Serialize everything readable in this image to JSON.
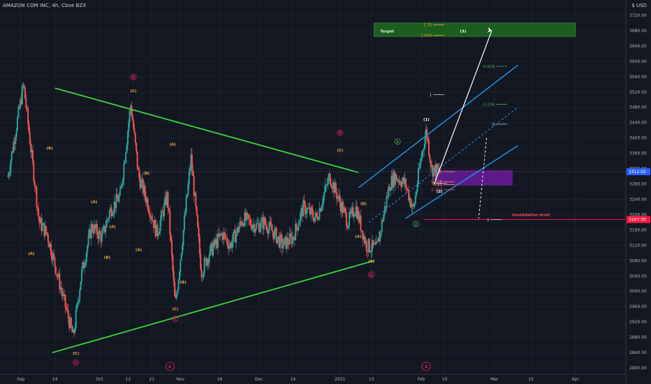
{
  "header": {
    "symbol": "AMAZON COM INC, 4h, Cboe BZX",
    "currency": "USD",
    "currency_icon": "dollar-sign-icon"
  },
  "colors": {
    "background": "#131722",
    "bull": "#26a69a",
    "bear": "#ef5350",
    "triangle": "#3dd53d",
    "channel": "#2196f3",
    "target_zone": "#1b5e20",
    "retrace_zone": "#6a1b9a",
    "invalidation": "#ff1744",
    "wave_orange": "#f2a93b",
    "wave_magenta": "#e91e63",
    "wave_green": "#4caf50"
  },
  "chart_data": {
    "type": "candlestick",
    "title": "AMAZON COM INC, 4h, Cboe BZX",
    "yaxis": {
      "range": [
        2780,
        3760
      ],
      "ticks": [
        2800,
        2840,
        2880,
        2920,
        2960,
        3000,
        3040,
        3080,
        3120,
        3160,
        3200,
        3240,
        3280,
        3320,
        3360,
        3400,
        3440,
        3480,
        3520,
        3560,
        3600,
        3640,
        3680,
        3720
      ],
      "tick_labels": [
        "2800.00",
        "2840.00",
        "2880.00",
        "2920.00",
        "2960.00",
        "3000.00",
        "3040.00",
        "3080.00",
        "3120.00",
        "3160.00",
        "3200.00",
        "3240.00",
        "3280.00",
        "3320.00",
        "3360.00",
        "3400.00",
        "3440.00",
        "3480.00",
        "3520.00",
        "3560.00",
        "3600.00",
        "3640.00",
        "3680.00",
        "3720.00"
      ],
      "last_price": "3312.02",
      "invalidation_price": "3187.30"
    },
    "xaxis": {
      "labels": [
        "Sep",
        "14",
        "Oct",
        "12",
        "21",
        "Nov",
        "16",
        "Dec",
        "14",
        "2021",
        "13",
        "Feb",
        "10",
        "Mar",
        "15",
        "Apr"
      ],
      "dates": [
        "2020-09-01",
        "2020-09-14",
        "2020-10-01",
        "2020-10-12",
        "2020-10-21",
        "2020-11-01",
        "2020-11-16",
        "2020-12-01",
        "2020-12-14",
        "2021-01-01",
        "2021-01-13",
        "2021-02-01",
        "2021-02-10",
        "2021-03-01",
        "2021-03-15",
        "2021-04-01"
      ]
    },
    "price_path": [
      [
        "2020-08-27",
        3300
      ],
      [
        "2020-09-02",
        3540
      ],
      [
        "2020-09-08",
        3180
      ],
      [
        "2020-09-11",
        3150
      ],
      [
        "2020-09-21",
        2880
      ],
      [
        "2020-09-24",
        3040
      ],
      [
        "2020-09-28",
        3170
      ],
      [
        "2020-10-02",
        3140
      ],
      [
        "2020-10-05",
        3210
      ],
      [
        "2020-10-09",
        3250
      ],
      [
        "2020-10-13",
        3490
      ],
      [
        "2020-10-16",
        3300
      ],
      [
        "2020-10-20",
        3220
      ],
      [
        "2020-10-23",
        3150
      ],
      [
        "2020-10-27",
        3250
      ],
      [
        "2020-10-30",
        2960
      ],
      [
        "2020-11-04",
        3280
      ],
      [
        "2020-11-05",
        3350
      ],
      [
        "2020-11-09",
        3050
      ],
      [
        "2020-11-12",
        3100
      ],
      [
        "2020-11-17",
        3150
      ],
      [
        "2020-11-20",
        3120
      ],
      [
        "2020-11-25",
        3190
      ],
      [
        "2020-11-30",
        3170
      ],
      [
        "2020-12-03",
        3180
      ],
      [
        "2020-12-07",
        3150
      ],
      [
        "2020-12-10",
        3120
      ],
      [
        "2020-12-14",
        3140
      ],
      [
        "2020-12-18",
        3220
      ],
      [
        "2020-12-23",
        3190
      ],
      [
        "2020-12-28",
        3300
      ],
      [
        "2021-01-04",
        3180
      ],
      [
        "2021-01-07",
        3220
      ],
      [
        "2021-01-11",
        3120
      ],
      [
        "2021-01-15",
        3110
      ],
      [
        "2021-01-20",
        3280
      ],
      [
        "2021-01-22",
        3300
      ],
      [
        "2021-01-26",
        3280
      ],
      [
        "2021-01-29",
        3210
      ],
      [
        "2021-02-01",
        3350
      ],
      [
        "2021-02-03",
        3420
      ],
      [
        "2021-02-05",
        3320
      ],
      [
        "2021-02-08",
        3312
      ]
    ],
    "triangle_upper": [
      [
        "2020-09-14",
        3530
      ],
      [
        "2021-01-08",
        3310
      ]
    ],
    "triangle_lower": [
      [
        "2020-09-13",
        2840
      ],
      [
        "2021-01-14",
        3080
      ]
    ],
    "channel_upper": [
      [
        "2021-01-08",
        3270
      ],
      [
        "2021-03-10",
        3590
      ]
    ],
    "channel_lower": [
      [
        "2021-01-26",
        3190
      ],
      [
        "2021-03-10",
        3380
      ]
    ],
    "channel_mid": [
      [
        "2021-01-12",
        3180
      ],
      [
        "2021-03-10",
        3480
      ]
    ],
    "projection": [
      [
        "2021-02-06",
        3280
      ],
      [
        "2021-02-28",
        3680
      ]
    ],
    "projection_alt": [
      [
        "2021-02-26",
        3400
      ],
      [
        "2021-02-23",
        3190
      ]
    ],
    "invalidation_line": [
      [
        "2021-02-02",
        3187.3
      ],
      [
        "2021-04-20",
        3187.3
      ]
    ],
    "target_zone": {
      "x": [
        "2021-01-14",
        "2021-04-01"
      ],
      "y": [
        3665,
        3700
      ]
    },
    "retrace_zone": {
      "x": [
        "2021-02-06",
        "2021-03-08"
      ],
      "y": [
        3276,
        3316
      ]
    },
    "fib_levels": [
      {
        "label": "1.75",
        "value": 3695,
        "x": "2021-02-04"
      },
      {
        "label": "1.618",
        "value": 3668,
        "x": "2021-02-04"
      },
      {
        "label": "-0.618",
        "value": 3587,
        "x": "2021-02-28"
      },
      {
        "label": "1",
        "value": 3513,
        "x": "2021-02-04"
      },
      {
        "label": "-0.236",
        "value": 3488,
        "x": "2021-02-28"
      },
      {
        "label": "0",
        "value": 3436,
        "x": "2021-02-28"
      },
      {
        "label": "0.5",
        "value": 3312,
        "x": "2021-02-08"
      },
      {
        "label": "0.618",
        "value": 3286,
        "x": "2021-02-08"
      },
      {
        "label": "0.65",
        "value": 3278,
        "x": "2021-02-08"
      },
      {
        "label": "0.707",
        "value": 3265,
        "x": "2021-02-08"
      },
      {
        "label": "0",
        "value": 3282,
        "x": "2021-02-05"
      },
      {
        "label": "1",
        "value": 3187.3,
        "x": "2021-02-26"
      }
    ],
    "annotations": [
      {
        "text": "Target",
        "x": "2021-01-19",
        "y": 3675,
        "style": "green"
      },
      {
        "text": "(3)",
        "x": "2021-02-17",
        "y": 3675,
        "style": "white"
      },
      {
        "text": "Invalidation level",
        "x": "2021-03-15",
        "y": 3196,
        "style": "red"
      },
      {
        "text": "(1)",
        "x": "2021-02-03",
        "y": 3445,
        "style": "white"
      },
      {
        "text": "(2)",
        "x": "2021-02-08",
        "y": 3257,
        "style": "white"
      },
      {
        "text": "(B)",
        "x": "2020-09-12",
        "y": 3370,
        "style": "orange"
      },
      {
        "text": "(A)",
        "x": "2020-09-05",
        "y": 3095,
        "style": "orange"
      },
      {
        "text": "(C)",
        "x": "2020-09-22",
        "y": 2835,
        "style": "orange"
      },
      {
        "text": "A",
        "x": "2020-09-22",
        "y": 2810,
        "style": "magenta"
      },
      {
        "text": "(A)",
        "x": "2020-09-29",
        "y": 3230,
        "style": "orange"
      },
      {
        "text": "(B)",
        "x": "2020-10-04",
        "y": 3085,
        "style": "orange"
      },
      {
        "text": "(A)",
        "x": "2020-10-06",
        "y": 3165,
        "style": "orange"
      },
      {
        "text": "B",
        "x": "2020-10-14",
        "y": 3555,
        "style": "magenta"
      },
      {
        "text": "(C)",
        "x": "2020-10-14",
        "y": 3520,
        "style": "orange"
      },
      {
        "text": "(B)",
        "x": "2020-10-19",
        "y": 3305,
        "style": "orange"
      },
      {
        "text": "(A)",
        "x": "2020-10-16",
        "y": 3105,
        "style": "orange"
      },
      {
        "text": "(A)",
        "x": "2020-10-29",
        "y": 3380,
        "style": "orange"
      },
      {
        "text": "(B)",
        "x": "2020-11-02",
        "y": 3020,
        "style": "orange"
      },
      {
        "text": "(C)",
        "x": "2020-10-30",
        "y": 2950,
        "style": "orange"
      },
      {
        "text": "C",
        "x": "2020-10-30",
        "y": 2925,
        "style": "magenta"
      },
      {
        "text": "E",
        "x": "2020-10-28",
        "y": 2800,
        "style": "magenta_circle"
      },
      {
        "text": "D",
        "x": "2021-01-01",
        "y": 3410,
        "style": "magenta"
      },
      {
        "text": "(C)",
        "x": "2021-01-01",
        "y": 3365,
        "style": "orange"
      },
      {
        "text": "(B)",
        "x": "2021-01-10",
        "y": 3225,
        "style": "orange"
      },
      {
        "text": "(A)",
        "x": "2021-01-08",
        "y": 3140,
        "style": "orange"
      },
      {
        "text": "(C)",
        "x": "2021-01-13",
        "y": 3075,
        "style": "orange"
      },
      {
        "text": "E",
        "x": "2021-01-13",
        "y": 3040,
        "style": "magenta"
      },
      {
        "text": "1",
        "x": "2021-01-23",
        "y": 3387,
        "style": "green_circle"
      },
      {
        "text": "2",
        "x": "2021-01-30",
        "y": 3172,
        "style": "green_circle"
      },
      {
        "text": "E",
        "x": "2021-02-03",
        "y": 2800,
        "style": "magenta_circle"
      }
    ]
  }
}
